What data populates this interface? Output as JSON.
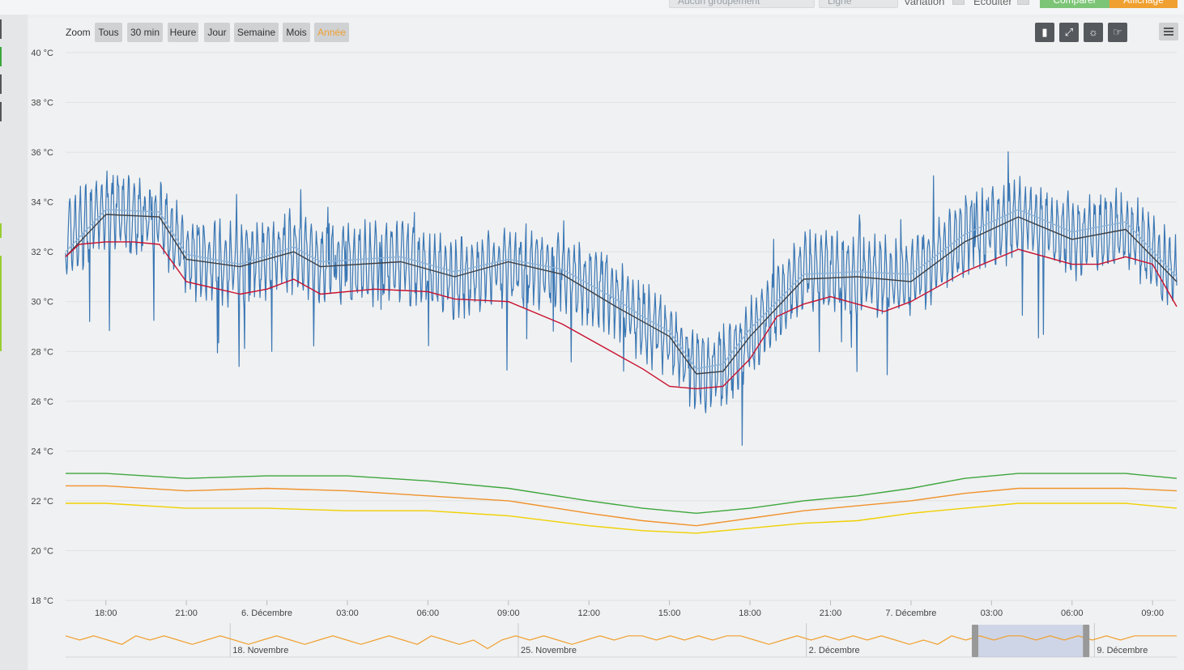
{
  "toolbar": {
    "grouping_placeholder": "Aucun groupement",
    "line_placeholder": "Ligne",
    "variation_label": "Variation",
    "scale_label": "Ecoulter",
    "compare_label": "Comparer",
    "display_label": "Affichage",
    "compare_color": "#7cc576",
    "display_color": "#f0a030"
  },
  "zoom": {
    "label": "Zoom",
    "buttons": [
      "Tous",
      "30 min",
      "Heure",
      "Jour",
      "Semaine",
      "Mois",
      "Année"
    ],
    "active": "Année"
  },
  "tools": [
    "bar-icon",
    "expand-icon",
    "sun-icon",
    "hand-icon"
  ],
  "chart_data": {
    "type": "line",
    "ylim": [
      18,
      40
    ],
    "yticks": [
      18,
      20,
      22,
      24,
      26,
      28,
      30,
      32,
      34,
      36,
      38,
      40
    ],
    "y_unit": "°C",
    "x_tick_labels": [
      "18:00",
      "21:00",
      "6. Décembre",
      "03:00",
      "06:00",
      "09:00",
      "12:00",
      "15:00",
      "18:00",
      "21:00",
      "7. Décembre",
      "03:00",
      "06:00",
      "09:00"
    ],
    "x_tick_hours": [
      18,
      21,
      24,
      27,
      30,
      33,
      36,
      39,
      42,
      45,
      48,
      51,
      54,
      57
    ],
    "x_range_hours": [
      16.5,
      57.9
    ],
    "grid": true,
    "series": [
      {
        "color": "#3a77b4",
        "noisy": true,
        "x": [
          16.5,
          18,
          20,
          21,
          23,
          25,
          26,
          29,
          31,
          33,
          35,
          37,
          38,
          39,
          40,
          41,
          42,
          44,
          46,
          48,
          50,
          52,
          54,
          56,
          57.9
        ],
        "values": [
          32.5,
          33.6,
          33.3,
          31.8,
          31.5,
          32.0,
          31.5,
          31.6,
          30.9,
          31.5,
          31.1,
          30.2,
          29.2,
          28.6,
          27.2,
          27.2,
          28.5,
          31.3,
          31.1,
          30.9,
          32.6,
          33.4,
          32.6,
          32.9,
          30.9
        ]
      },
      {
        "color": "#8fb3d6",
        "x": [
          16.5,
          18,
          20,
          21,
          23,
          25,
          26,
          29,
          31,
          33,
          35,
          37,
          38,
          39,
          40,
          41,
          42,
          44,
          46,
          48,
          50,
          52,
          54,
          56,
          57.9
        ],
        "values": [
          32.0,
          33.7,
          33.6,
          31.9,
          31.5,
          32.2,
          31.6,
          31.8,
          31.2,
          31.7,
          31.3,
          30.1,
          29.4,
          28.8,
          27.3,
          27.5,
          28.9,
          31.1,
          31.2,
          31.1,
          32.7,
          33.7,
          32.8,
          33.2,
          31.0
        ]
      },
      {
        "color": "#3d3f44",
        "x": [
          16.5,
          18,
          20,
          21,
          23,
          25,
          26,
          29,
          31,
          33,
          35,
          37,
          38,
          39,
          40,
          41,
          42,
          44,
          46,
          48,
          50,
          52,
          54,
          56,
          57.9
        ],
        "values": [
          31.8,
          33.5,
          33.4,
          31.7,
          31.4,
          32.0,
          31.4,
          31.6,
          31.0,
          31.6,
          31.1,
          29.8,
          29.2,
          28.6,
          27.1,
          27.2,
          28.6,
          30.9,
          31.0,
          30.8,
          32.4,
          33.4,
          32.5,
          32.9,
          30.8
        ]
      },
      {
        "color": "#c8102e",
        "x": [
          16.5,
          17,
          18,
          19,
          20,
          21,
          23,
          24,
          25,
          26,
          28,
          30,
          31,
          33,
          35,
          37,
          38,
          39,
          40,
          41,
          42,
          43,
          44,
          45,
          47,
          48,
          50,
          52,
          54,
          55,
          56,
          57,
          57.9
        ],
        "values": [
          31.8,
          32.3,
          32.4,
          32.4,
          32.3,
          30.8,
          30.3,
          30.5,
          30.9,
          30.3,
          30.5,
          30.4,
          30.1,
          30.0,
          29.1,
          27.9,
          27.3,
          26.6,
          26.5,
          26.6,
          27.7,
          29.4,
          29.9,
          30.2,
          29.6,
          30.0,
          31.2,
          32.1,
          31.5,
          31.5,
          31.8,
          31.5,
          29.8
        ]
      },
      {
        "color": "#3da63d",
        "x": [
          16.5,
          18,
          21,
          24,
          27,
          30,
          33,
          36,
          38,
          40,
          42,
          44,
          46,
          48,
          50,
          52,
          54,
          56,
          57.9
        ],
        "values": [
          23.1,
          23.1,
          22.9,
          23.0,
          23.0,
          22.8,
          22.5,
          22.0,
          21.7,
          21.5,
          21.7,
          22.0,
          22.2,
          22.5,
          22.9,
          23.1,
          23.1,
          23.1,
          22.9
        ]
      },
      {
        "color": "#f0922b",
        "x": [
          16.5,
          18,
          21,
          24,
          27,
          30,
          33,
          36,
          38,
          40,
          42,
          44,
          46,
          48,
          50,
          52,
          54,
          56,
          57.9
        ],
        "values": [
          22.6,
          22.6,
          22.4,
          22.5,
          22.4,
          22.2,
          22.0,
          21.5,
          21.2,
          21.0,
          21.3,
          21.6,
          21.8,
          22.0,
          22.3,
          22.5,
          22.5,
          22.5,
          22.4
        ]
      },
      {
        "color": "#f0d000",
        "x": [
          16.5,
          18,
          21,
          24,
          27,
          30,
          33,
          36,
          38,
          40,
          42,
          44,
          46,
          48,
          50,
          52,
          54,
          56,
          57.9
        ],
        "values": [
          21.9,
          21.9,
          21.7,
          21.7,
          21.6,
          21.6,
          21.4,
          21.0,
          20.8,
          20.7,
          20.9,
          21.1,
          21.2,
          21.5,
          21.7,
          21.9,
          21.9,
          21.9,
          21.7
        ]
      }
    ]
  },
  "navigator": {
    "labels": [
      "18. Novembre",
      "25. Novembre",
      "2. Décembre",
      "9. Décembre"
    ],
    "label_days": [
      4,
      11,
      18,
      25
    ],
    "range_days": [
      0,
      27.0
    ],
    "selection_days": [
      22.1,
      24.8
    ],
    "line_color": "#f0a030",
    "values": [
      31,
      30,
      31,
      30,
      29,
      31,
      30,
      31,
      30,
      29,
      30,
      31,
      30,
      29,
      30,
      31,
      30,
      29,
      30,
      31,
      30,
      29,
      30,
      31,
      30,
      29,
      31,
      30,
      29,
      30,
      28,
      30,
      31,
      30,
      31,
      30,
      29,
      30,
      31,
      30,
      31,
      31,
      30,
      31,
      30,
      31,
      30,
      31,
      31,
      30,
      29,
      30,
      31,
      30,
      31,
      30,
      31,
      30,
      31,
      30,
      29,
      30,
      29,
      31,
      30,
      31,
      30,
      31,
      31,
      30,
      31,
      30,
      31,
      30,
      31,
      30,
      31,
      31,
      31,
      31
    ]
  }
}
